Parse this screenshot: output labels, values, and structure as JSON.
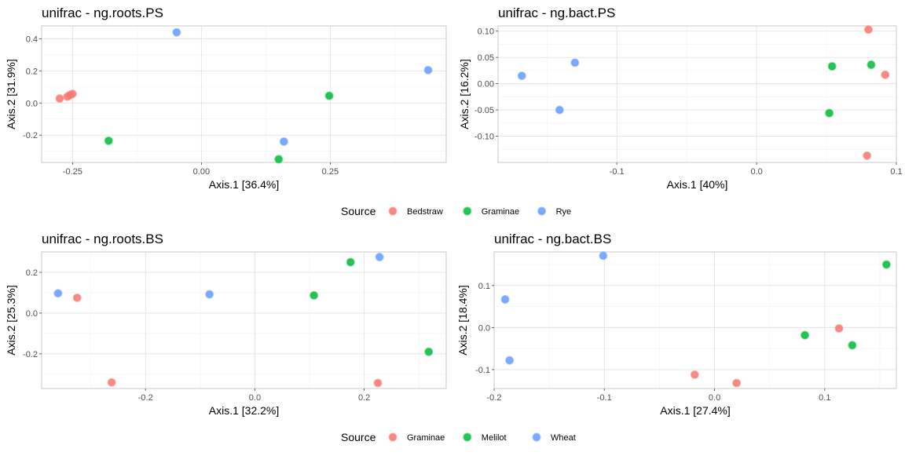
{
  "colors": {
    "Bedstraw": "#F8766D",
    "Graminae_top": "#00BA38",
    "Rye": "#619CFF",
    "Graminae_bottom": "#F8766D",
    "Melilot": "#00BA38",
    "Wheat": "#619CFF"
  },
  "legends": [
    {
      "title": "Source",
      "entries": [
        {
          "label": "Bedstraw",
          "color": "#F8766D"
        },
        {
          "label": "Graminae",
          "color": "#00BA38"
        },
        {
          "label": "Rye",
          "color": "#619CFF"
        }
      ]
    },
    {
      "title": "Source",
      "entries": [
        {
          "label": "Graminae",
          "color": "#F8766D"
        },
        {
          "label": "Melilot",
          "color": "#00BA38"
        },
        {
          "label": "Wheat",
          "color": "#619CFF"
        }
      ]
    }
  ],
  "chart_data": [
    {
      "type": "scatter",
      "title": "unifrac - ng.roots.PS",
      "xlabel": "Axis.1   [36.4%]",
      "ylabel": "Axis.2   [31.9%]",
      "xlim": [
        -0.31,
        0.475
      ],
      "ylim": [
        -0.37,
        0.48
      ],
      "xticks": [
        -0.25,
        0.0,
        0.25
      ],
      "xtick_labels": [
        "-0.25",
        "0.00",
        "0.25"
      ],
      "yticks": [
        -0.2,
        0.0,
        0.2,
        0.4
      ],
      "ytick_labels": [
        "-0.2",
        "0.0",
        "0.2",
        "0.4"
      ],
      "grid": true,
      "series": [
        {
          "name": "Bedstraw",
          "color": "#F8766D",
          "points": [
            [
              -0.275,
              0.028
            ],
            [
              -0.26,
              0.04
            ],
            [
              -0.255,
              0.05
            ],
            [
              -0.25,
              0.057
            ]
          ]
        },
        {
          "name": "Graminae",
          "color": "#00BA38",
          "points": [
            [
              -0.18,
              -0.235
            ],
            [
              0.15,
              -0.35
            ],
            [
              0.248,
              0.045
            ]
          ]
        },
        {
          "name": "Rye",
          "color": "#619CFF",
          "points": [
            [
              -0.048,
              0.44
            ],
            [
              0.16,
              -0.24
            ],
            [
              0.44,
              0.205
            ]
          ]
        }
      ]
    },
    {
      "type": "scatter",
      "title": "unifrac - ng.bact.PS",
      "xlabel": "Axis.1   [40%]",
      "ylabel": "Axis.2   [16.2%]",
      "xlim": [
        -0.185,
        0.1
      ],
      "ylim": [
        -0.15,
        0.11
      ],
      "xticks": [
        -0.1,
        0.0,
        0.1
      ],
      "xtick_labels": [
        "-0.1",
        "0.0",
        "0.1"
      ],
      "yticks": [
        -0.1,
        -0.05,
        0.0,
        0.05,
        0.1
      ],
      "ytick_labels": [
        "-0.10",
        "-0.05",
        "0.00",
        "0.05",
        "0.10"
      ],
      "grid": true,
      "series": [
        {
          "name": "Bedstraw",
          "color": "#F8766D",
          "points": [
            [
              0.08,
              0.103
            ],
            [
              0.092,
              0.017
            ],
            [
              0.079,
              -0.137
            ]
          ]
        },
        {
          "name": "Graminae",
          "color": "#00BA38",
          "points": [
            [
              0.054,
              0.033
            ],
            [
              0.082,
              0.036
            ],
            [
              0.052,
              -0.056
            ]
          ]
        },
        {
          "name": "Rye",
          "color": "#619CFF",
          "points": [
            [
              -0.168,
              0.015
            ],
            [
              -0.13,
              0.04
            ],
            [
              -0.141,
              -0.05
            ]
          ]
        }
      ]
    },
    {
      "type": "scatter",
      "title": "unifrac - ng.roots.BS",
      "xlabel": "Axis.1   [32.2%]",
      "ylabel": "Axis.2   [25.3%]",
      "xlim": [
        -0.39,
        0.35
      ],
      "ylim": [
        -0.37,
        0.3
      ],
      "xticks": [
        -0.2,
        0.0,
        0.2
      ],
      "xtick_labels": [
        "-0.2",
        "0.0",
        "0.2"
      ],
      "yticks": [
        -0.2,
        0.0,
        0.2
      ],
      "ytick_labels": [
        "-0.2",
        "0.0",
        "0.2"
      ],
      "grid": true,
      "series": [
        {
          "name": "Graminae",
          "color": "#F8766D",
          "points": [
            [
              -0.325,
              0.075
            ],
            [
              -0.262,
              -0.34
            ],
            [
              0.225,
              -0.343
            ]
          ]
        },
        {
          "name": "Melilot",
          "color": "#00BA38",
          "points": [
            [
              0.108,
              0.087
            ],
            [
              0.175,
              0.25
            ],
            [
              0.318,
              -0.19
            ]
          ]
        },
        {
          "name": "Wheat",
          "color": "#619CFF",
          "points": [
            [
              -0.36,
              0.097
            ],
            [
              -0.083,
              0.092
            ],
            [
              0.228,
              0.275
            ]
          ]
        }
      ]
    },
    {
      "type": "scatter",
      "title": "unifrac - ng.bact.BS",
      "xlabel": "Axis.1   [27.4%]",
      "ylabel": "Axis.2   [18.4%]",
      "xlim": [
        -0.2,
        0.165
      ],
      "ylim": [
        -0.145,
        0.18
      ],
      "xticks": [
        -0.2,
        -0.1,
        0.0,
        0.1
      ],
      "xtick_labels": [
        "-0.2",
        "-0.1",
        "0.0",
        "0.1"
      ],
      "yticks": [
        -0.1,
        0.0,
        0.1
      ],
      "ytick_labels": [
        "-0.1",
        "0.0",
        "0.1"
      ],
      "grid": true,
      "series": [
        {
          "name": "Graminae",
          "color": "#F8766D",
          "points": [
            [
              -0.018,
              -0.112
            ],
            [
              0.02,
              -0.132
            ],
            [
              0.113,
              -0.002
            ]
          ]
        },
        {
          "name": "Melilot",
          "color": "#00BA38",
          "points": [
            [
              0.082,
              -0.018
            ],
            [
              0.125,
              -0.042
            ],
            [
              0.156,
              0.15
            ]
          ]
        },
        {
          "name": "Wheat",
          "color": "#619CFF",
          "points": [
            [
              -0.19,
              0.067
            ],
            [
              -0.186,
              -0.078
            ],
            [
              -0.101,
              0.171
            ]
          ]
        }
      ]
    }
  ]
}
